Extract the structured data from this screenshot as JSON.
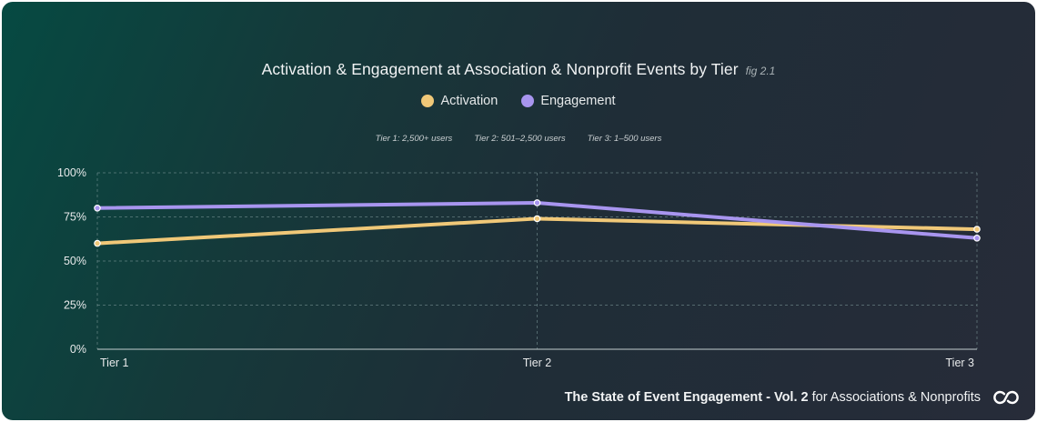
{
  "chart_data": {
    "type": "line",
    "title": "Activation & Engagement at Association & Nonprofit Events by Tier",
    "fig_label": "fig 2.1",
    "categories": [
      "Tier 1",
      "Tier 2",
      "Tier 3"
    ],
    "series": [
      {
        "name": "Activation",
        "values": [
          60,
          74,
          68
        ],
        "color": "#f0c878"
      },
      {
        "name": "Engagement",
        "values": [
          80,
          83,
          63
        ],
        "color": "#a895ef"
      }
    ],
    "ylim": [
      0,
      100
    ],
    "yticks": [
      {
        "value": 100,
        "label": "100%"
      },
      {
        "value": 75,
        "label": "75%"
      },
      {
        "value": 50,
        "label": "50%"
      },
      {
        "value": 25,
        "label": "25%"
      },
      {
        "value": 0,
        "label": "0%"
      }
    ],
    "tier_notes": [
      "Tier 1: 2,500+ users",
      "Tier 2: 501–2,500 users",
      "Tier 3: 1–500 users"
    ],
    "grid": true
  },
  "footer": {
    "bold": "The State of Event Engagement - Vol. 2",
    "rest": "for Associations & Nonprofits",
    "logo_icon": "infinity-logo-icon"
  }
}
